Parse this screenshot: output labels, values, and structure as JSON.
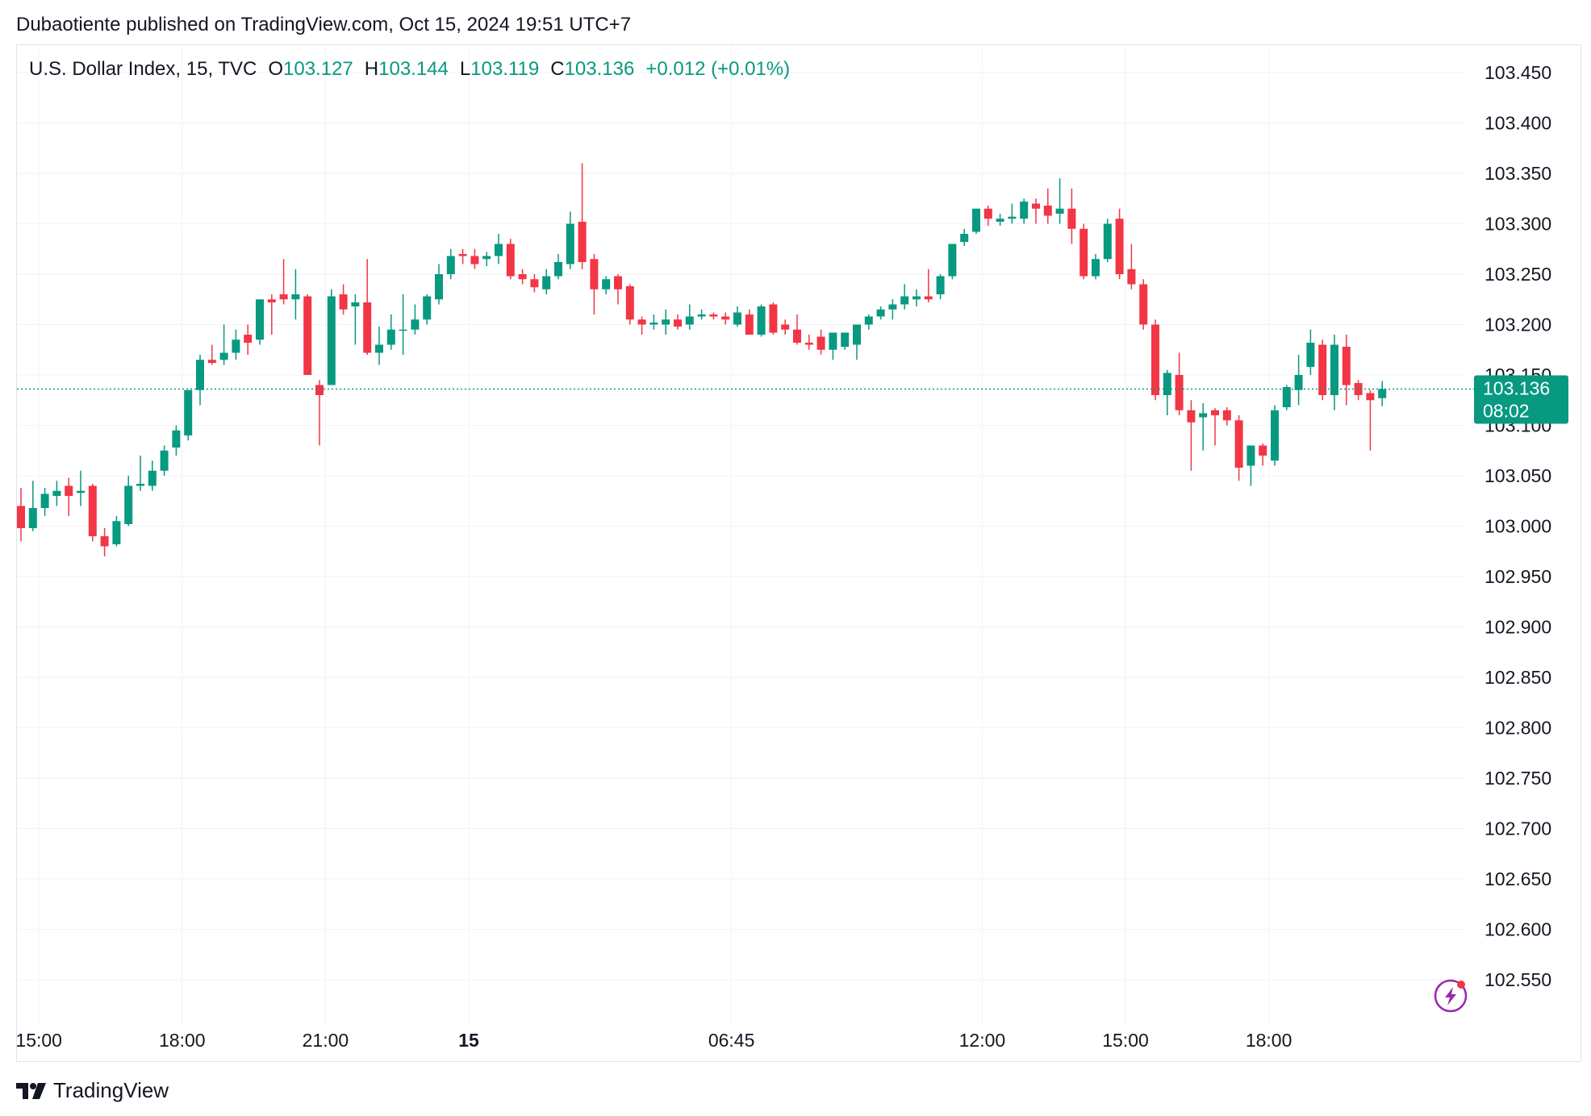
{
  "header": {
    "published_line": "Dubaotiente published on TradingView.com, Oct 15, 2024 19:51 UTC+7"
  },
  "legend": {
    "symbol": "U.S. Dollar Index, 15, TVC",
    "open_label": "O",
    "open": "103.127",
    "high_label": "H",
    "high": "103.144",
    "low_label": "L",
    "low": "103.119",
    "close_label": "C",
    "close": "103.136",
    "change": "+0.012 (+0.01%)"
  },
  "price_tag": {
    "price": "103.136",
    "countdown": "08:02"
  },
  "footer": {
    "brand": "TradingView"
  },
  "colors": {
    "up": "#089981",
    "down": "#f23645",
    "grid": "#f0f3fa",
    "text": "#131722",
    "accent_icon": "#9c27b0"
  },
  "chart_data": {
    "type": "candlestick",
    "ylim": [
      102.52,
      103.47
    ],
    "y_ticks": [
      "103.450",
      "103.400",
      "103.350",
      "103.300",
      "103.250",
      "103.200",
      "103.150",
      "103.100",
      "103.050",
      "103.000",
      "102.950",
      "102.900",
      "102.850",
      "102.800",
      "102.750",
      "102.700",
      "102.650",
      "102.600",
      "102.550"
    ],
    "x_ticks": [
      {
        "label": "15:00",
        "index": 1.5,
        "bold": false
      },
      {
        "label": "18:00",
        "index": 13.5,
        "bold": false
      },
      {
        "label": "21:00",
        "index": 25.5,
        "bold": false
      },
      {
        "label": "15",
        "index": 37.5,
        "bold": true
      },
      {
        "label": "06:45",
        "index": 59.5,
        "bold": false
      },
      {
        "label": "12:00",
        "index": 80.5,
        "bold": false
      },
      {
        "label": "15:00",
        "index": 92.5,
        "bold": false
      },
      {
        "label": "18:00",
        "index": 104.5,
        "bold": false
      }
    ],
    "last_price": 103.136,
    "candles": [
      [
        103.02,
        103.038,
        102.985,
        102.998
      ],
      [
        102.998,
        103.045,
        102.995,
        103.018
      ],
      [
        103.018,
        103.038,
        103.01,
        103.032
      ],
      [
        103.03,
        103.045,
        103.02,
        103.035
      ],
      [
        103.04,
        103.048,
        103.01,
        103.03
      ],
      [
        103.033,
        103.055,
        103.02,
        103.035
      ],
      [
        103.04,
        103.042,
        102.985,
        102.99
      ],
      [
        102.99,
        102.998,
        102.97,
        102.98
      ],
      [
        102.982,
        103.01,
        102.98,
        103.005
      ],
      [
        103.002,
        103.05,
        103.0,
        103.04
      ],
      [
        103.04,
        103.07,
        103.035,
        103.042
      ],
      [
        103.04,
        103.065,
        103.035,
        103.055
      ],
      [
        103.055,
        103.08,
        103.05,
        103.075
      ],
      [
        103.078,
        103.1,
        103.07,
        103.095
      ],
      [
        103.09,
        103.135,
        103.085,
        103.135
      ],
      [
        103.135,
        103.17,
        103.12,
        103.165
      ],
      [
        103.165,
        103.18,
        103.16,
        103.162
      ],
      [
        103.165,
        103.2,
        103.16,
        103.172
      ],
      [
        103.172,
        103.195,
        103.165,
        103.185
      ],
      [
        103.19,
        103.2,
        103.17,
        103.182
      ],
      [
        103.185,
        103.225,
        103.18,
        103.225
      ],
      [
        103.225,
        103.23,
        103.19,
        103.222
      ],
      [
        103.23,
        103.265,
        103.22,
        103.225
      ],
      [
        103.225,
        103.255,
        103.205,
        103.23
      ],
      [
        103.228,
        103.23,
        103.15,
        103.15
      ],
      [
        103.14,
        103.145,
        103.08,
        103.13
      ],
      [
        103.14,
        103.235,
        103.14,
        103.228
      ],
      [
        103.23,
        103.24,
        103.21,
        103.215
      ],
      [
        103.218,
        103.23,
        103.18,
        103.222
      ],
      [
        103.222,
        103.265,
        103.17,
        103.172
      ],
      [
        103.172,
        103.198,
        103.16,
        103.18
      ],
      [
        103.18,
        103.21,
        103.175,
        103.195
      ],
      [
        103.195,
        103.23,
        103.17,
        103.195
      ],
      [
        103.195,
        103.22,
        103.19,
        103.205
      ],
      [
        103.205,
        103.23,
        103.2,
        103.228
      ],
      [
        103.225,
        103.26,
        103.22,
        103.25
      ],
      [
        103.25,
        103.275,
        103.245,
        103.268
      ],
      [
        103.27,
        103.275,
        103.26,
        103.268
      ],
      [
        103.268,
        103.275,
        103.255,
        103.26
      ],
      [
        103.265,
        103.272,
        103.258,
        103.268
      ],
      [
        103.268,
        103.29,
        103.26,
        103.28
      ],
      [
        103.28,
        103.285,
        103.245,
        103.248
      ],
      [
        103.25,
        103.255,
        103.24,
        103.245
      ],
      [
        103.245,
        103.25,
        103.232,
        103.237
      ],
      [
        103.235,
        103.255,
        103.23,
        103.248
      ],
      [
        103.248,
        103.27,
        103.245,
        103.262
      ],
      [
        103.26,
        103.312,
        103.255,
        103.3
      ],
      [
        103.302,
        103.36,
        103.255,
        103.262
      ],
      [
        103.265,
        103.27,
        103.21,
        103.235
      ],
      [
        103.235,
        103.248,
        103.23,
        103.245
      ],
      [
        103.248,
        103.25,
        103.22,
        103.235
      ],
      [
        103.238,
        103.24,
        103.2,
        103.205
      ],
      [
        103.205,
        103.208,
        103.19,
        103.2
      ],
      [
        103.2,
        103.21,
        103.195,
        103.202
      ],
      [
        103.2,
        103.215,
        103.19,
        103.205
      ],
      [
        103.205,
        103.21,
        103.195,
        103.198
      ],
      [
        103.2,
        103.22,
        103.195,
        103.208
      ],
      [
        103.208,
        103.215,
        103.205,
        103.21
      ],
      [
        103.21,
        103.212,
        103.205,
        103.208
      ],
      [
        103.208,
        103.212,
        103.2,
        103.205
      ],
      [
        103.2,
        103.218,
        103.198,
        103.212
      ],
      [
        103.21,
        103.215,
        103.19,
        103.19
      ],
      [
        103.19,
        103.22,
        103.188,
        103.218
      ],
      [
        103.22,
        103.222,
        103.19,
        103.192
      ],
      [
        103.2,
        103.205,
        103.19,
        103.195
      ],
      [
        103.195,
        103.21,
        103.18,
        103.182
      ],
      [
        103.182,
        103.19,
        103.175,
        103.18
      ],
      [
        103.188,
        103.195,
        103.17,
        103.175
      ],
      [
        103.175,
        103.19,
        103.165,
        103.192
      ],
      [
        103.178,
        103.192,
        103.175,
        103.192
      ],
      [
        103.18,
        103.2,
        103.165,
        103.2
      ],
      [
        103.2,
        103.21,
        103.195,
        103.208
      ],
      [
        103.208,
        103.218,
        103.205,
        103.215
      ],
      [
        103.215,
        103.225,
        103.205,
        103.22
      ],
      [
        103.22,
        103.24,
        103.215,
        103.228
      ],
      [
        103.225,
        103.235,
        103.218,
        103.228
      ],
      [
        103.228,
        103.255,
        103.222,
        103.225
      ],
      [
        103.23,
        103.25,
        103.225,
        103.248
      ],
      [
        103.248,
        103.28,
        103.245,
        103.28
      ],
      [
        103.282,
        103.295,
        103.278,
        103.29
      ],
      [
        103.292,
        103.315,
        103.29,
        103.315
      ],
      [
        103.315,
        103.318,
        103.298,
        103.305
      ],
      [
        103.302,
        103.31,
        103.298,
        103.305
      ],
      [
        103.305,
        103.32,
        103.3,
        103.307
      ],
      [
        103.305,
        103.325,
        103.3,
        103.322
      ],
      [
        103.32,
        103.325,
        103.3,
        103.315
      ],
      [
        103.318,
        103.335,
        103.3,
        103.308
      ],
      [
        103.31,
        103.345,
        103.3,
        103.315
      ],
      [
        103.315,
        103.335,
        103.28,
        103.295
      ],
      [
        103.295,
        103.3,
        103.245,
        103.248
      ],
      [
        103.248,
        103.27,
        103.245,
        103.265
      ],
      [
        103.265,
        103.305,
        103.262,
        103.3
      ],
      [
        103.305,
        103.315,
        103.245,
        103.25
      ],
      [
        103.255,
        103.28,
        103.235,
        103.24
      ],
      [
        103.24,
        103.245,
        103.195,
        103.2
      ],
      [
        103.2,
        103.205,
        103.125,
        103.13
      ],
      [
        103.13,
        103.155,
        103.11,
        103.152
      ],
      [
        103.15,
        103.172,
        103.11,
        103.115
      ],
      [
        103.115,
        103.125,
        103.055,
        103.103
      ],
      [
        103.108,
        103.122,
        103.075,
        103.112
      ],
      [
        103.115,
        103.117,
        103.08,
        103.11
      ],
      [
        103.115,
        103.118,
        103.1,
        103.105
      ],
      [
        103.105,
        103.11,
        103.045,
        103.058
      ],
      [
        103.06,
        103.08,
        103.04,
        103.08
      ],
      [
        103.08,
        103.082,
        103.06,
        103.07
      ],
      [
        103.065,
        103.12,
        103.06,
        103.115
      ],
      [
        103.118,
        103.14,
        103.115,
        103.138
      ],
      [
        103.135,
        103.17,
        103.12,
        103.15
      ],
      [
        103.158,
        103.195,
        103.15,
        103.182
      ],
      [
        103.18,
        103.185,
        103.125,
        103.13
      ],
      [
        103.13,
        103.19,
        103.115,
        103.18
      ],
      [
        103.178,
        103.19,
        103.12,
        103.14
      ],
      [
        103.142,
        103.145,
        103.125,
        103.13
      ],
      [
        103.132,
        103.135,
        103.075,
        103.125
      ],
      [
        103.127,
        103.144,
        103.119,
        103.136
      ]
    ]
  }
}
